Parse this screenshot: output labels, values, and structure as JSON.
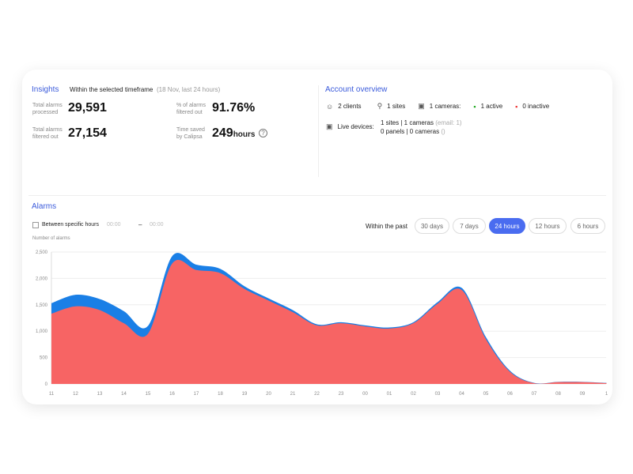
{
  "insights": {
    "title": "Insights",
    "subtitle": "Within the selected timeframe",
    "range": "(18 Nov, last 24 hours)",
    "total_processed_label1": "Total alarms",
    "total_processed_label2": "processed",
    "total_processed": "29,591",
    "filtered_label1": "Total alarms",
    "filtered_label2": "filtered out",
    "filtered": "27,154",
    "pct_label1": "% of alarms",
    "pct_label2": "filtered out",
    "pct": "91.76%",
    "time_label1": "Time saved",
    "time_label2": "by Calipsa",
    "time_value": "249",
    "time_unit": "hours"
  },
  "account": {
    "title": "Account overview",
    "clients": "2 clients",
    "sites": "1 sites",
    "cameras": "1 cameras:",
    "active": "1 active",
    "inactive": "0 inactive",
    "live_label": "Live devices:",
    "live_line1": "1 sites | 1 cameras",
    "live_line1_note": "(email: 1)",
    "live_line2": "0 panels | 0 cameras",
    "live_line2_note": "()"
  },
  "alarms": {
    "title": "Alarms",
    "between_label": "Between specific hours",
    "from_time": "00:00",
    "dash": "–",
    "to_time": "00:00",
    "within_label": "Within the past",
    "ranges": [
      "30 days",
      "7 days",
      "24 hours",
      "12 hours",
      "6 hours"
    ],
    "active_range": "24 hours"
  },
  "colors": {
    "accent": "#4a6cf0",
    "total": "#1a7fe6",
    "filtered": "#f76464"
  },
  "chart_data": {
    "type": "area",
    "ylabel": "Number of alarms",
    "ylim": [
      0,
      2500
    ],
    "yticks": [
      0,
      500,
      1000,
      1500,
      2000,
      2500
    ],
    "ytick_labels": [
      "0",
      "500",
      "1,000",
      "1,500",
      "2,000",
      "2,500"
    ],
    "categories": [
      "11",
      "12",
      "13",
      "14",
      "15",
      "16",
      "17",
      "18",
      "19",
      "20",
      "21",
      "22",
      "23",
      "00",
      "01",
      "02",
      "03",
      "04",
      "05",
      "06",
      "07",
      "08",
      "09",
      "1"
    ],
    "series": [
      {
        "values": [
          1530,
          1690,
          1610,
          1380,
          1100,
          2420,
          2260,
          2180,
          1850,
          1620,
          1400,
          1130,
          1170,
          1110,
          1070,
          1170,
          1550,
          1820,
          890,
          250,
          20,
          40,
          40,
          20
        ]
      },
      {
        "values": [
          1330,
          1470,
          1400,
          1150,
          950,
          2280,
          2160,
          2100,
          1800,
          1580,
          1360,
          1110,
          1150,
          1090,
          1050,
          1150,
          1520,
          1780,
          850,
          230,
          15,
          35,
          35,
          15
        ]
      }
    ],
    "grid": true
  }
}
